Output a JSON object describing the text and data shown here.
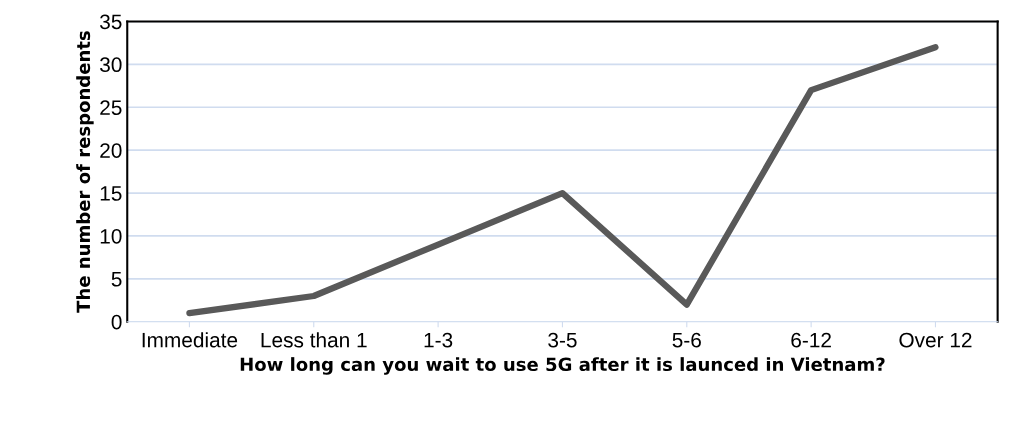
{
  "chart_data": {
    "type": "line",
    "xlabel": "How long can you wait to use 5G after it is launced in Vietnam?",
    "ylabel": "The number of respondents",
    "categories": [
      "Immediate",
      "Less than 1",
      "1-3",
      "3-5",
      "5-6",
      "6-12",
      "Over 12"
    ],
    "series": [
      {
        "color": "#595959",
        "values": [
          1,
          3,
          9,
          15,
          2,
          27,
          32
        ]
      }
    ],
    "ylim": [
      0,
      35
    ],
    "yticks": [
      0,
      5,
      10,
      15,
      20,
      25,
      30,
      35
    ],
    "grid": "y",
    "legend": false,
    "marker": "none",
    "line_style": "solid"
  }
}
